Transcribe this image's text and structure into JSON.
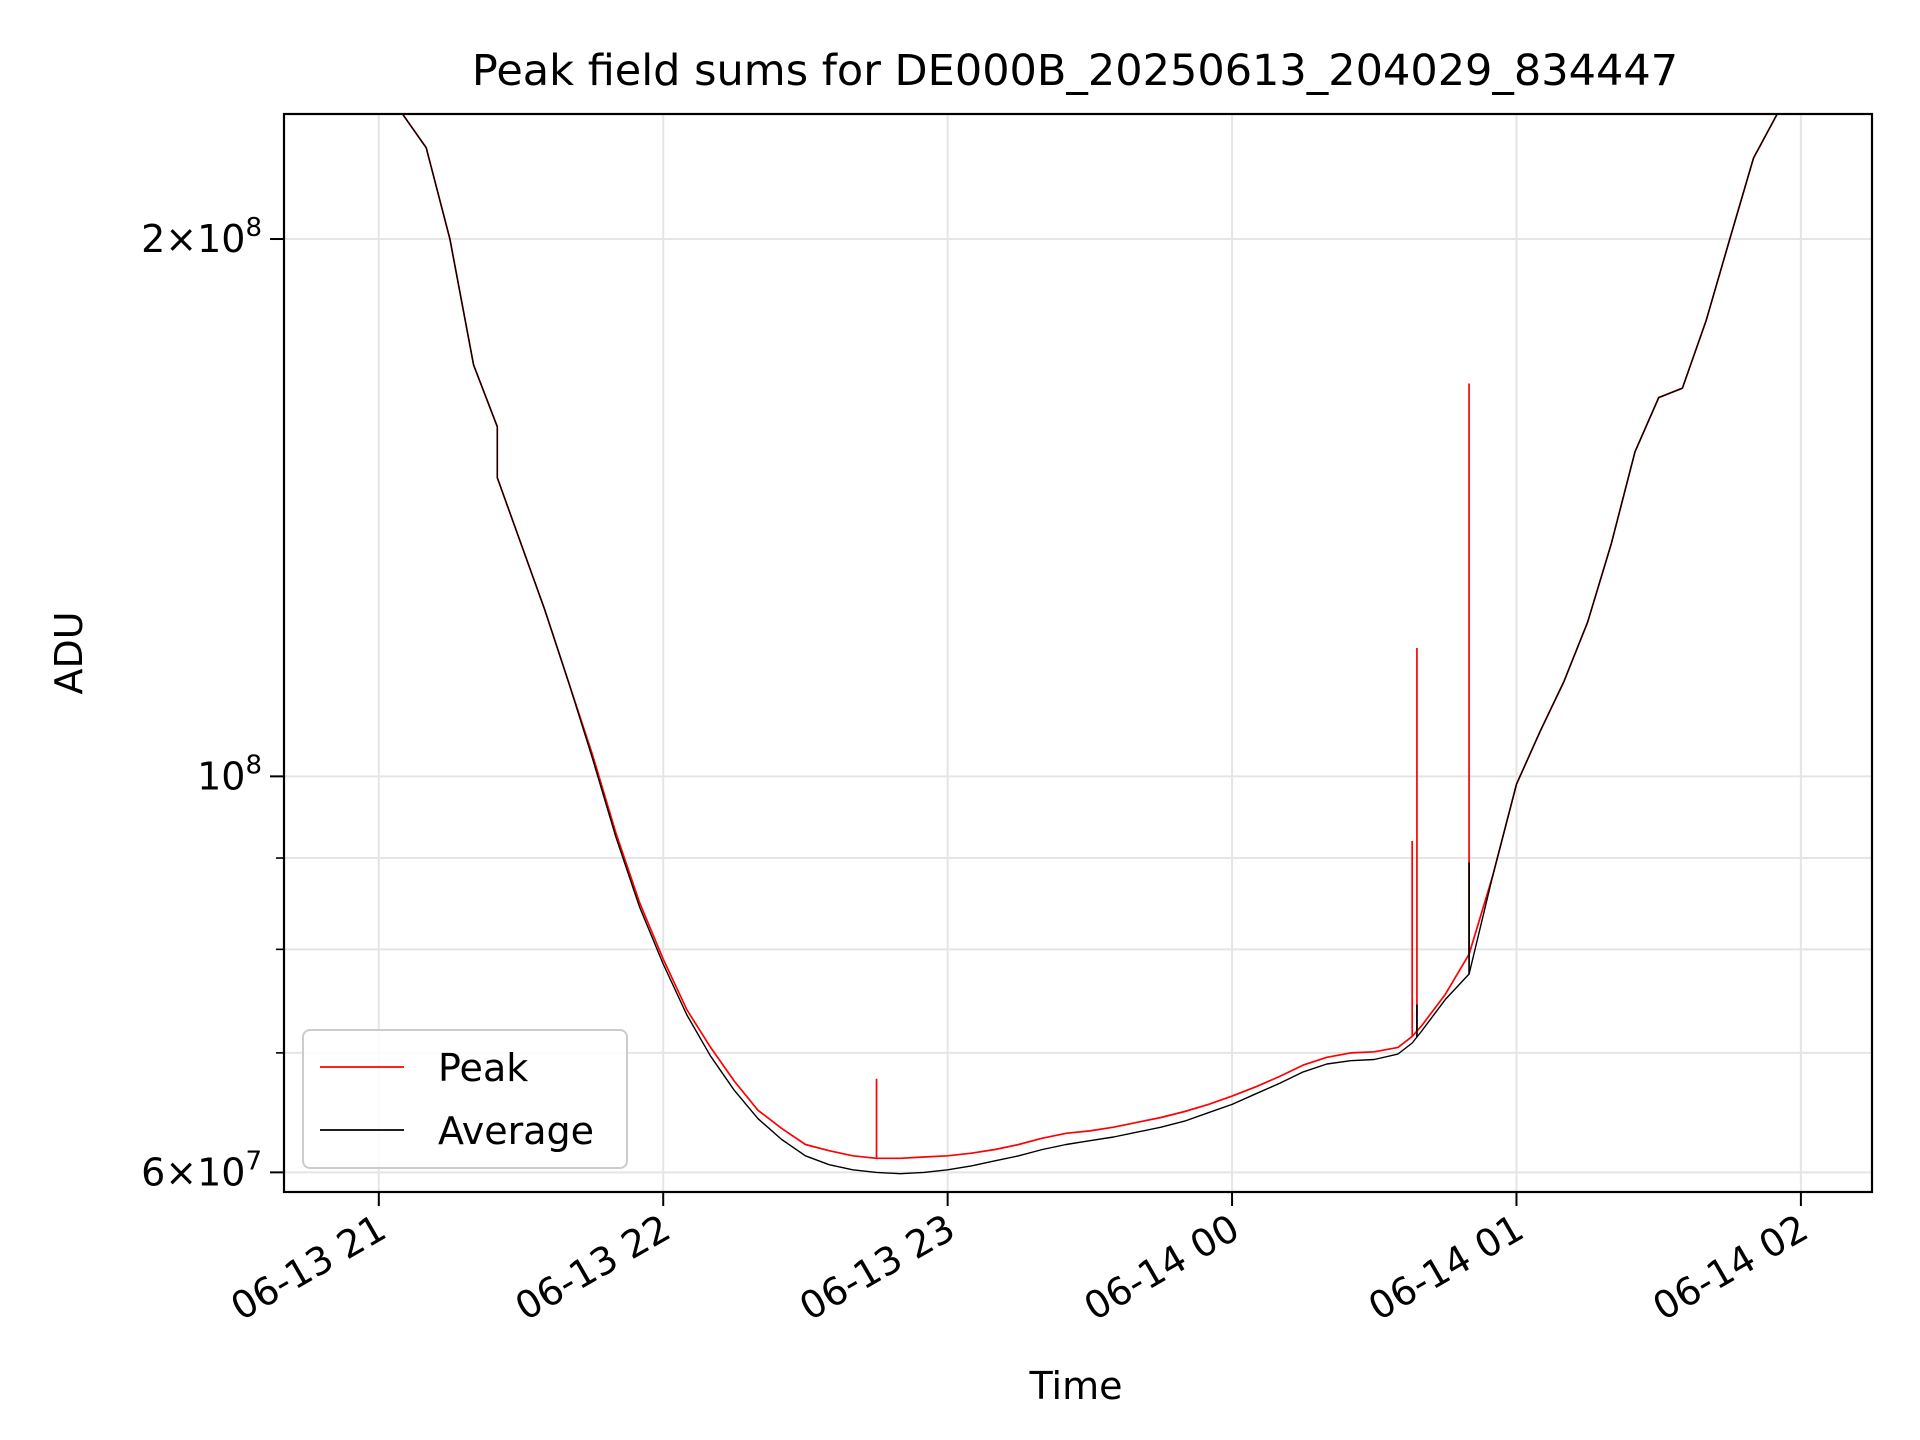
{
  "chart_data": {
    "type": "line",
    "title": "Peak field sums for DE000B_20250613_204029_834447",
    "xlabel": "Time",
    "ylabel": "ADU",
    "yscale": "log",
    "ylim": [
      58500000,
      235000000
    ],
    "xlim": [
      "06-13 20:40",
      "06-14 02:15"
    ],
    "x_ticks": [
      "06-13 21",
      "06-13 22",
      "06-13 23",
      "06-14 00",
      "06-14 01",
      "06-14 02"
    ],
    "y_tick_labels": [
      {
        "value": 60000000,
        "mantissa": "6",
        "base": "10",
        "exp": "7"
      },
      {
        "value": 100000000,
        "mantissa": "",
        "base": "10",
        "exp": "8"
      },
      {
        "value": 200000000,
        "mantissa": "2",
        "base": "10",
        "exp": "8"
      }
    ],
    "y_minor_ticks": [
      70000000,
      80000000,
      90000000
    ],
    "grid": true,
    "legend_position": "lower-left",
    "colors": {
      "peak": "#ff0000",
      "average": "#000000",
      "grid": "#e5e5e5"
    },
    "series": [
      {
        "name": "Peak",
        "color": "#ff0000",
        "points": [
          [
            "06-13 20:40",
            235000000
          ],
          [
            "06-13 20:59",
            235000000
          ],
          [
            "06-13 21:05",
            235000000
          ],
          [
            "06-13 21:10",
            225000000
          ],
          [
            "06-13 21:15",
            200000000
          ],
          [
            "06-13 21:20",
            170000000
          ],
          [
            "06-13 21:25",
            157000000
          ],
          [
            "06-13 21:25",
            147000000
          ],
          [
            "06-13 21:30",
            135000000
          ],
          [
            "06-13 21:35",
            124000000
          ],
          [
            "06-13 21:40",
            113000000
          ],
          [
            "06-13 21:45",
            103000000
          ],
          [
            "06-13 21:50",
            93000000
          ],
          [
            "06-13 21:55",
            85000000
          ],
          [
            "06-13 22:00",
            79000000
          ],
          [
            "06-13 22:05",
            74000000
          ],
          [
            "06-13 22:10",
            70500000
          ],
          [
            "06-13 22:15",
            67500000
          ],
          [
            "06-13 22:20",
            65000000
          ],
          [
            "06-13 22:25",
            63500000
          ],
          [
            "06-13 22:30",
            62200000
          ],
          [
            "06-13 22:35",
            61700000
          ],
          [
            "06-13 22:40",
            61300000
          ],
          [
            "06-13 22:45",
            61100000
          ],
          [
            "06-13 22:50",
            61100000
          ],
          [
            "06-13 22:55",
            61200000
          ],
          [
            "06-13 23:00",
            61300000
          ],
          [
            "06-13 23:05",
            61500000
          ],
          [
            "06-13 23:10",
            61800000
          ],
          [
            "06-13 23:15",
            62200000
          ],
          [
            "06-13 23:20",
            62700000
          ],
          [
            "06-13 23:25",
            63100000
          ],
          [
            "06-13 23:30",
            63300000
          ],
          [
            "06-13 23:35",
            63600000
          ],
          [
            "06-13 23:40",
            64000000
          ],
          [
            "06-13 23:45",
            64400000
          ],
          [
            "06-13 23:50",
            64900000
          ],
          [
            "06-13 23:55",
            65500000
          ],
          [
            "06-14 00:00",
            66200000
          ],
          [
            "06-14 00:05",
            67000000
          ],
          [
            "06-14 00:10",
            67900000
          ],
          [
            "06-14 00:15",
            68900000
          ],
          [
            "06-14 00:20",
            69600000
          ],
          [
            "06-14 00:25",
            70000000
          ],
          [
            "06-14 00:30",
            70100000
          ],
          [
            "06-14 00:35",
            70500000
          ],
          [
            "06-14 00:38",
            71500000
          ],
          [
            "06-14 00:40",
            72500000
          ],
          [
            "06-14 00:45",
            75500000
          ],
          [
            "06-14 00:50",
            79500000
          ],
          [
            "06-14 00:55",
            88000000
          ],
          [
            "06-14 01:00",
            99000000
          ],
          [
            "06-14 01:05",
            106000000
          ],
          [
            "06-14 01:10",
            113000000
          ],
          [
            "06-14 01:15",
            122000000
          ],
          [
            "06-14 01:20",
            135000000
          ],
          [
            "06-14 01:25",
            152000000
          ],
          [
            "06-14 01:30",
            163000000
          ],
          [
            "06-14 01:35",
            165000000
          ],
          [
            "06-14 01:40",
            180000000
          ],
          [
            "06-14 01:45",
            200000000
          ],
          [
            "06-14 01:50",
            222000000
          ],
          [
            "06-14 01:55",
            235000000
          ],
          [
            "06-14 02:15",
            235000000
          ]
        ],
        "spikes": [
          [
            "06-13 22:45",
            67700000
          ],
          [
            "06-14 00:38",
            92000000
          ],
          [
            "06-14 00:39",
            118000000
          ],
          [
            "06-14 00:50",
            166000000
          ]
        ]
      },
      {
        "name": "Average",
        "color": "#000000",
        "points": [
          [
            "06-13 20:40",
            235000000
          ],
          [
            "06-13 20:59",
            235000000
          ],
          [
            "06-13 21:05",
            235000000
          ],
          [
            "06-13 21:10",
            225000000
          ],
          [
            "06-13 21:15",
            200000000
          ],
          [
            "06-13 21:20",
            170000000
          ],
          [
            "06-13 21:25",
            157000000
          ],
          [
            "06-13 21:25",
            147000000
          ],
          [
            "06-13 21:30",
            135000000
          ],
          [
            "06-13 21:35",
            124000000
          ],
          [
            "06-13 21:40",
            113000000
          ],
          [
            "06-13 21:45",
            102500000
          ],
          [
            "06-13 21:50",
            92500000
          ],
          [
            "06-13 21:55",
            84500000
          ],
          [
            "06-13 22:00",
            78500000
          ],
          [
            "06-13 22:05",
            73500000
          ],
          [
            "06-13 22:10",
            69700000
          ],
          [
            "06-13 22:15",
            66700000
          ],
          [
            "06-13 22:20",
            64300000
          ],
          [
            "06-13 22:25",
            62600000
          ],
          [
            "06-13 22:30",
            61300000
          ],
          [
            "06-13 22:35",
            60600000
          ],
          [
            "06-13 22:40",
            60200000
          ],
          [
            "06-13 22:45",
            60000000
          ],
          [
            "06-13 22:50",
            59900000
          ],
          [
            "06-13 22:55",
            60000000
          ],
          [
            "06-13 23:00",
            60200000
          ],
          [
            "06-13 23:05",
            60500000
          ],
          [
            "06-13 23:10",
            60900000
          ],
          [
            "06-13 23:15",
            61300000
          ],
          [
            "06-13 23:20",
            61800000
          ],
          [
            "06-13 23:25",
            62200000
          ],
          [
            "06-13 23:30",
            62500000
          ],
          [
            "06-13 23:35",
            62800000
          ],
          [
            "06-13 23:40",
            63200000
          ],
          [
            "06-13 23:45",
            63600000
          ],
          [
            "06-13 23:50",
            64100000
          ],
          [
            "06-13 23:55",
            64800000
          ],
          [
            "06-14 00:00",
            65500000
          ],
          [
            "06-14 00:05",
            66400000
          ],
          [
            "06-14 00:10",
            67300000
          ],
          [
            "06-14 00:15",
            68300000
          ],
          [
            "06-14 00:20",
            69000000
          ],
          [
            "06-14 00:25",
            69300000
          ],
          [
            "06-14 00:30",
            69400000
          ],
          [
            "06-14 00:35",
            69900000
          ],
          [
            "06-14 00:38",
            70900000
          ],
          [
            "06-14 00:40",
            72000000
          ],
          [
            "06-14 00:45",
            75000000
          ],
          [
            "06-14 00:50",
            77500000
          ],
          [
            "06-14 00:55",
            88000000
          ],
          [
            "06-14 01:00",
            99000000
          ],
          [
            "06-14 01:05",
            106000000
          ],
          [
            "06-14 01:10",
            113000000
          ],
          [
            "06-14 01:15",
            122000000
          ],
          [
            "06-14 01:20",
            135000000
          ],
          [
            "06-14 01:25",
            152000000
          ],
          [
            "06-14 01:30",
            163000000
          ],
          [
            "06-14 01:35",
            165000000
          ],
          [
            "06-14 01:40",
            180000000
          ],
          [
            "06-14 01:45",
            200000000
          ],
          [
            "06-14 01:50",
            222000000
          ],
          [
            "06-14 01:55",
            235000000
          ],
          [
            "06-14 02:15",
            235000000
          ]
        ],
        "spikes": [
          [
            "06-14 00:39",
            74500000
          ],
          [
            "06-14 00:50",
            89500000
          ]
        ]
      }
    ],
    "legend": [
      {
        "label": "Peak",
        "color": "#ff0000"
      },
      {
        "label": "Average",
        "color": "#000000"
      }
    ]
  }
}
